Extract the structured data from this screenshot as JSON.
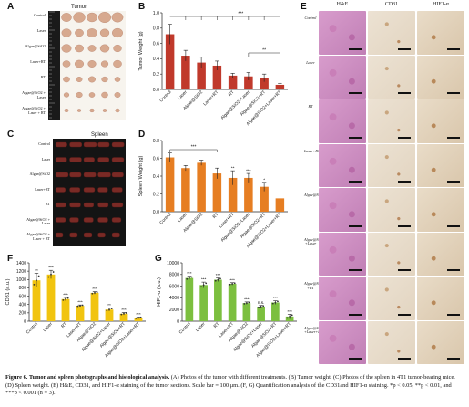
{
  "panels": {
    "A": {
      "letter": "A",
      "title": "Tumor",
      "rows": [
        "Control",
        "Laser",
        "Algae@SiO2",
        "Laser+RT",
        "RT",
        "Algae@SiO2 +\nLaser",
        "Algae@SiO2 +\nLaser + RT"
      ]
    },
    "C": {
      "letter": "C",
      "title": "Spleen",
      "rows": [
        "Control",
        "Laser",
        "Algae@SiO2",
        "Laser+RT",
        "RT",
        "Algae@SiO2 +\nLaser",
        "Algae@SiO2 +\nLaser + RT"
      ]
    },
    "E": {
      "letter": "E",
      "headers": [
        "H&E",
        "CD31",
        "HIF1-α"
      ],
      "rows": [
        "Control",
        "Laser",
        "RT",
        "Laser+RT",
        "Algae@SiO2",
        "Algae@SiO2\n+Laser",
        "Algae@SiO2\n+RT",
        "Algae@SiO2\n+Laser+RT"
      ],
      "scale_bar": true
    }
  },
  "chart_data": [
    {
      "id": "B",
      "letter": "B",
      "type": "bar",
      "ylabel": "Tumor Weight (g)",
      "ylim": [
        0,
        1.0
      ],
      "yticks": [
        "0.0",
        "0.2",
        "0.4",
        "0.6",
        "0.8",
        "1.0"
      ],
      "categories": [
        "Control",
        "Laser",
        "Algae@SiO2",
        "Laser+RT",
        "RT",
        "Algae@SiO2+Laser",
        "Algae@SiO2+RT",
        "Algae@SiO2+Laser+RT"
      ],
      "values": [
        0.72,
        0.44,
        0.35,
        0.31,
        0.18,
        0.17,
        0.15,
        0.06
      ],
      "errors": [
        0.13,
        0.07,
        0.07,
        0.06,
        0.03,
        0.05,
        0.05,
        0.02
      ],
      "bar_color": "#c0392b",
      "annotations": [
        "***",
        "**"
      ]
    },
    {
      "id": "D",
      "letter": "D",
      "type": "bar",
      "ylabel": "Spleen Weight (g)",
      "ylim": [
        0,
        0.8
      ],
      "yticks": [
        "0.0",
        "0.2",
        "0.4",
        "0.6",
        "0.8"
      ],
      "categories": [
        "Control",
        "Laser",
        "Algae@SiO2",
        "RT",
        "Laser+RT",
        "Algae@SiO2+Laser",
        "Algae@SiO2+RT",
        "Algae@SiO2+Laser+RT"
      ],
      "values": [
        0.61,
        0.49,
        0.55,
        0.43,
        0.38,
        0.38,
        0.28,
        0.15
      ],
      "errors": [
        0.05,
        0.03,
        0.03,
        0.06,
        0.08,
        0.05,
        0.05,
        0.06
      ],
      "bar_color": "#e67e22",
      "sig": [
        "",
        "",
        "",
        "",
        "**",
        "***",
        "*",
        ""
      ],
      "annotations": [
        "***"
      ]
    },
    {
      "id": "F",
      "letter": "F",
      "type": "bar",
      "ylabel": "CD31 (a.u.)",
      "ylim": [
        0,
        1400
      ],
      "yticks": [
        "0",
        "200",
        "400",
        "600",
        "800",
        "1000",
        "1200",
        "1400"
      ],
      "categories": [
        "Control",
        "Laser",
        "RT",
        "Laser+RT",
        "Algae@SiO2",
        "Algae@SiO2+Laser",
        "Algae@SiO2+RT",
        "Algae@SiO2+Laser+RT"
      ],
      "values": [
        980,
        1120,
        530,
        370,
        680,
        280,
        180,
        80
      ],
      "errors": [
        170,
        100,
        40,
        20,
        30,
        40,
        30,
        20
      ],
      "bar_color": "#f1c40f",
      "sig": [
        "**",
        "***",
        "***",
        "***",
        "***",
        "**",
        "***",
        "***"
      ]
    },
    {
      "id": "G",
      "letter": "G",
      "type": "bar",
      "ylabel": "HIF1-α (a.u.)",
      "ylim": [
        0,
        10000
      ],
      "yticks": [
        "0",
        "2000",
        "4000",
        "6000",
        "8000",
        "10000"
      ],
      "categories": [
        "Control",
        "Laser",
        "RT",
        "Laser+RT",
        "Algae@SiO2",
        "Algae@SiO2+Laser",
        "Algae@SiO2+RT",
        "Algae@SiO2+Laser+RT"
      ],
      "values": [
        7400,
        6200,
        7100,
        6400,
        3100,
        2500,
        3200,
        800
      ],
      "errors": [
        300,
        500,
        300,
        200,
        200,
        200,
        300,
        400
      ],
      "bar_color": "#7cbf3f",
      "sig": [
        "***",
        "***",
        "***",
        "***",
        "***",
        "n.s.",
        "***",
        "***"
      ]
    }
  ],
  "caption": {
    "lead": "Figure 6. Tumor and spleen photographs and histological analysis.",
    "body": " (A) Photos of the tumor with different treatments. (B) Tumor weight. (C) Photos of the spleen in 4T1 tumor-bearing mice. (D) Spleen weight. (E) H&E, CD31, and HIF1-α staining of the tumor sections. Scale bar = 100 μm. (F, G) Quantification analysis of the CD31and HIF1-α staining. *p < 0.05, **p < 0.01, and ***p < 0.001 (n = 3)."
  }
}
